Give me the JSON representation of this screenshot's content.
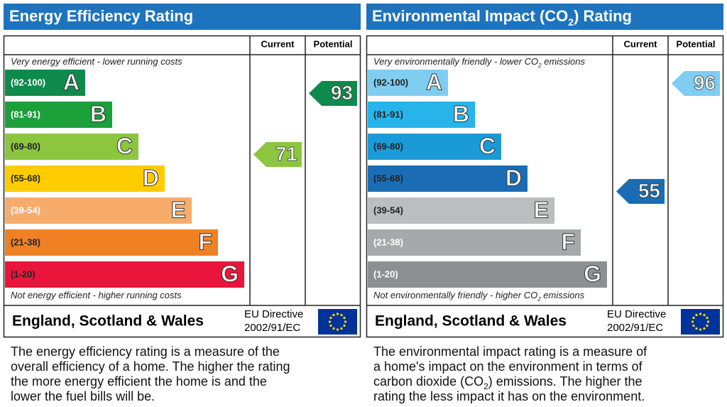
{
  "panels": [
    {
      "title": [
        "Energy Efficiency Rating"
      ],
      "columns": [
        "Current",
        "Potential"
      ],
      "top_note": [
        "Very energy efficient - lower running costs"
      ],
      "bottom_note": [
        "Not energy efficient - higher running costs"
      ],
      "bands": [
        {
          "range": "(92-100)",
          "letter": "A"
        },
        {
          "range": "(81-91)",
          "letter": "B"
        },
        {
          "range": "(69-80)",
          "letter": "C"
        },
        {
          "range": "(55-68)",
          "letter": "D"
        },
        {
          "range": "(39-54)",
          "letter": "E"
        },
        {
          "range": "(21-38)",
          "letter": "F"
        },
        {
          "range": "(1-20)",
          "letter": "G"
        }
      ],
      "current": 71,
      "potential": 93,
      "region": "England, Scotland & Wales",
      "directive": [
        "EU Directive",
        "2002/91/EC"
      ],
      "description": [
        [
          "The energy efficiency rating is a measure of the"
        ],
        [
          "overall efficiency of a home. The higher the rating"
        ],
        [
          "the more energy efficient the home is and the"
        ],
        [
          "lower the fuel bills will be."
        ]
      ]
    },
    {
      "title": [
        "Environmental Impact (CO",
        "2",
        ") Rating"
      ],
      "columns": [
        "Current",
        "Potential"
      ],
      "top_note": [
        "Very environmentally friendly - lower CO",
        "2",
        " emissions"
      ],
      "bottom_note": [
        "Not environmentally friendly - higher CO",
        "2",
        " emissions"
      ],
      "bands": [
        {
          "range": "(92-100)",
          "letter": "A"
        },
        {
          "range": "(81-91)",
          "letter": "B"
        },
        {
          "range": "(69-80)",
          "letter": "C"
        },
        {
          "range": "(55-68)",
          "letter": "D"
        },
        {
          "range": "(39-54)",
          "letter": "E"
        },
        {
          "range": "(21-38)",
          "letter": "F"
        },
        {
          "range": "(1-20)",
          "letter": "G"
        }
      ],
      "current": 55,
      "potential": 96,
      "region": "England, Scotland & Wales",
      "directive": [
        "EU Directive",
        "2002/91/EC"
      ],
      "description": [
        [
          "The environmental impact rating is a measure of"
        ],
        [
          "a home's impact on the environment in terms of"
        ],
        [
          "carbon dioxide (CO",
          "2",
          ") emissions. The higher the"
        ],
        [
          "rating the less impact it has on the environment."
        ]
      ]
    }
  ]
}
